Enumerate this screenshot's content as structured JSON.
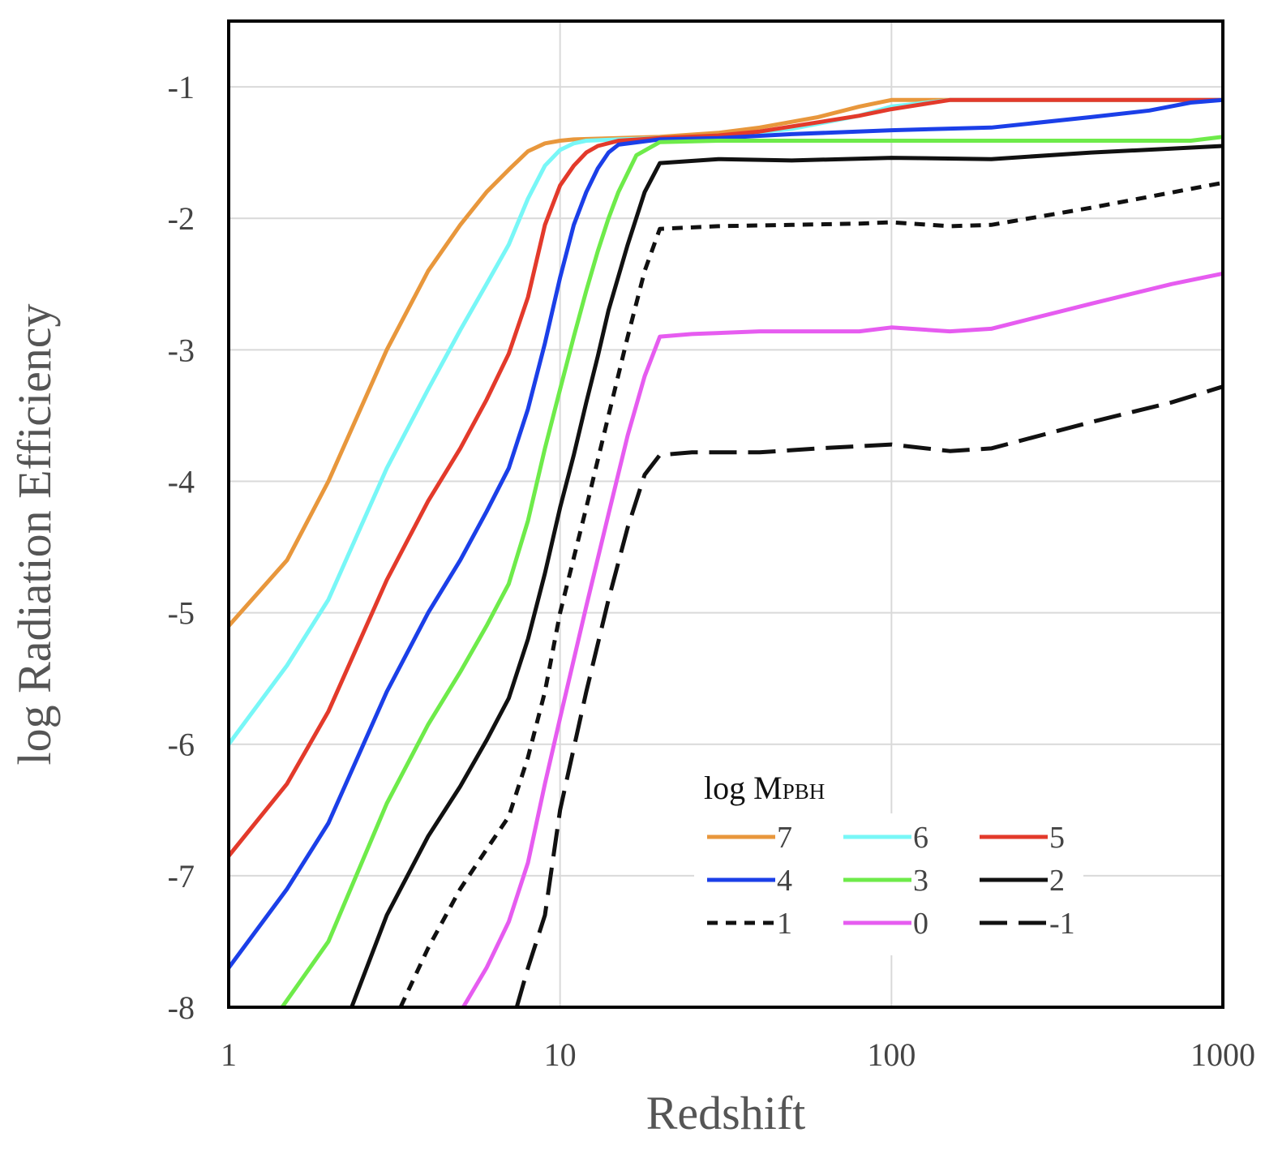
{
  "chart_data": {
    "type": "line",
    "title": "",
    "xlabel": "Redshift",
    "ylabel": "log Radiation Efficiency",
    "xscale": "log",
    "xlim": [
      1,
      1000
    ],
    "ylim": [
      -8,
      -0.5
    ],
    "xticks": [
      {
        "value": 1,
        "label": "1"
      },
      {
        "value": 10,
        "label": "10"
      },
      {
        "value": 100,
        "label": "100"
      },
      {
        "value": 1000,
        "label": "1000"
      }
    ],
    "yticks": [
      {
        "value": -1,
        "label": "-1"
      },
      {
        "value": -2,
        "label": "-2"
      },
      {
        "value": -3,
        "label": "-3"
      },
      {
        "value": -4,
        "label": "-4"
      },
      {
        "value": -5,
        "label": "-5"
      },
      {
        "value": -6,
        "label": "-6"
      },
      {
        "value": -7,
        "label": "-7"
      },
      {
        "value": -8,
        "label": "-8"
      }
    ],
    "grid": true,
    "legend": {
      "title_main": "log M",
      "title_sub": "PBH",
      "position": "bottom-right",
      "columns": 3
    },
    "series": [
      {
        "name": "7",
        "color": "#E8973C",
        "dash": "solid",
        "x": [
          1,
          1.5,
          2,
          3,
          4,
          5,
          6,
          7,
          8,
          9,
          10,
          11,
          15,
          20,
          30,
          40,
          60,
          80,
          100,
          150,
          1000
        ],
        "y": [
          -5.1,
          -4.6,
          -4.0,
          -3.0,
          -2.4,
          -2.05,
          -1.8,
          -1.63,
          -1.49,
          -1.43,
          -1.41,
          -1.4,
          -1.39,
          -1.38,
          -1.35,
          -1.31,
          -1.23,
          -1.15,
          -1.1,
          -1.1,
          -1.1
        ]
      },
      {
        "name": "6",
        "color": "#78F7F7",
        "dash": "solid",
        "x": [
          1,
          1.5,
          2,
          3,
          4,
          5,
          6,
          7,
          8,
          9,
          10,
          11,
          12,
          15,
          20,
          30,
          50,
          80,
          100,
          150,
          1000
        ],
        "y": [
          -6.0,
          -5.4,
          -4.9,
          -3.9,
          -3.3,
          -2.85,
          -2.5,
          -2.2,
          -1.85,
          -1.6,
          -1.48,
          -1.43,
          -1.41,
          -1.4,
          -1.39,
          -1.38,
          -1.32,
          -1.22,
          -1.15,
          -1.1,
          -1.1
        ]
      },
      {
        "name": "5",
        "color": "#E33A2B",
        "dash": "solid",
        "x": [
          1,
          1.5,
          2,
          3,
          4,
          5,
          6,
          7,
          8,
          9,
          10,
          11,
          12,
          13,
          15,
          20,
          30,
          40,
          60,
          80,
          100,
          150,
          1000
        ],
        "y": [
          -6.85,
          -6.3,
          -5.75,
          -4.75,
          -4.15,
          -3.75,
          -3.38,
          -3.03,
          -2.6,
          -2.05,
          -1.75,
          -1.6,
          -1.5,
          -1.45,
          -1.41,
          -1.39,
          -1.37,
          -1.34,
          -1.27,
          -1.22,
          -1.17,
          -1.1,
          -1.1
        ]
      },
      {
        "name": "4",
        "color": "#1B3FE8",
        "dash": "solid",
        "x": [
          1,
          1.5,
          2,
          3,
          4,
          5,
          6,
          7,
          8,
          9,
          10,
          11,
          12,
          13,
          14,
          15,
          20,
          30,
          50,
          100,
          200,
          400,
          600,
          800,
          1000
        ],
        "y": [
          -7.7,
          -7.1,
          -6.6,
          -5.6,
          -5.0,
          -4.6,
          -4.23,
          -3.9,
          -3.45,
          -2.95,
          -2.45,
          -2.05,
          -1.8,
          -1.62,
          -1.5,
          -1.44,
          -1.4,
          -1.39,
          -1.36,
          -1.33,
          -1.31,
          -1.23,
          -1.18,
          -1.12,
          -1.1
        ]
      },
      {
        "name": "3",
        "color": "#6EEB4A",
        "dash": "solid",
        "x": [
          1.45,
          2,
          3,
          4,
          5,
          6,
          7,
          8,
          9,
          10,
          11,
          12,
          13,
          14,
          15,
          17,
          20,
          30,
          50,
          100,
          200,
          500,
          800,
          1000
        ],
        "y": [
          -8.0,
          -7.5,
          -6.45,
          -5.85,
          -5.45,
          -5.1,
          -4.78,
          -4.3,
          -3.75,
          -3.3,
          -2.9,
          -2.55,
          -2.25,
          -2.0,
          -1.8,
          -1.52,
          -1.42,
          -1.41,
          -1.41,
          -1.41,
          -1.41,
          -1.41,
          -1.41,
          -1.38
        ]
      },
      {
        "name": "2",
        "color": "#111111",
        "dash": "solid",
        "x": [
          2.35,
          3,
          4,
          5,
          6,
          7,
          8,
          9,
          10,
          11,
          12,
          13,
          14,
          16,
          18,
          20,
          30,
          50,
          100,
          200,
          400,
          700,
          1000
        ],
        "y": [
          -8.0,
          -7.3,
          -6.7,
          -6.32,
          -5.97,
          -5.65,
          -5.2,
          -4.7,
          -4.2,
          -3.8,
          -3.4,
          -3.05,
          -2.7,
          -2.2,
          -1.8,
          -1.58,
          -1.55,
          -1.56,
          -1.54,
          -1.55,
          -1.5,
          -1.47,
          -1.45
        ]
      },
      {
        "name": "1",
        "color": "#111111",
        "dash": "short",
        "x": [
          3.3,
          4,
          5,
          6,
          7,
          8,
          9,
          10,
          12,
          14,
          16,
          18,
          20,
          30,
          50,
          80,
          100,
          150,
          200,
          400,
          1000
        ],
        "y": [
          -8.0,
          -7.55,
          -7.1,
          -6.8,
          -6.55,
          -6.1,
          -5.6,
          -5.0,
          -4.2,
          -3.5,
          -2.9,
          -2.4,
          -2.08,
          -2.06,
          -2.05,
          -2.04,
          -2.03,
          -2.06,
          -2.05,
          -1.92,
          -1.73
        ]
      },
      {
        "name": "0",
        "color": "#E65CF0",
        "dash": "solid",
        "x": [
          5.1,
          6,
          7,
          8,
          9,
          10,
          12,
          14,
          16,
          18,
          20,
          25,
          40,
          60,
          80,
          100,
          150,
          200,
          400,
          700,
          1000
        ],
        "y": [
          -8.0,
          -7.7,
          -7.35,
          -6.9,
          -6.3,
          -5.8,
          -4.95,
          -4.25,
          -3.65,
          -3.2,
          -2.9,
          -2.88,
          -2.86,
          -2.86,
          -2.86,
          -2.83,
          -2.86,
          -2.84,
          -2.65,
          -2.5,
          -2.42
        ]
      },
      {
        "name": "-1",
        "color": "#111111",
        "dash": "long",
        "x": [
          7.4,
          8,
          9,
          10,
          12,
          14,
          16,
          18,
          20,
          25,
          40,
          60,
          100,
          150,
          200,
          400,
          700,
          1000
        ],
        "y": [
          -8.0,
          -7.7,
          -7.3,
          -6.5,
          -5.6,
          -4.9,
          -4.35,
          -3.95,
          -3.8,
          -3.78,
          -3.78,
          -3.75,
          -3.72,
          -3.77,
          -3.75,
          -3.55,
          -3.4,
          -3.28
        ]
      }
    ]
  }
}
